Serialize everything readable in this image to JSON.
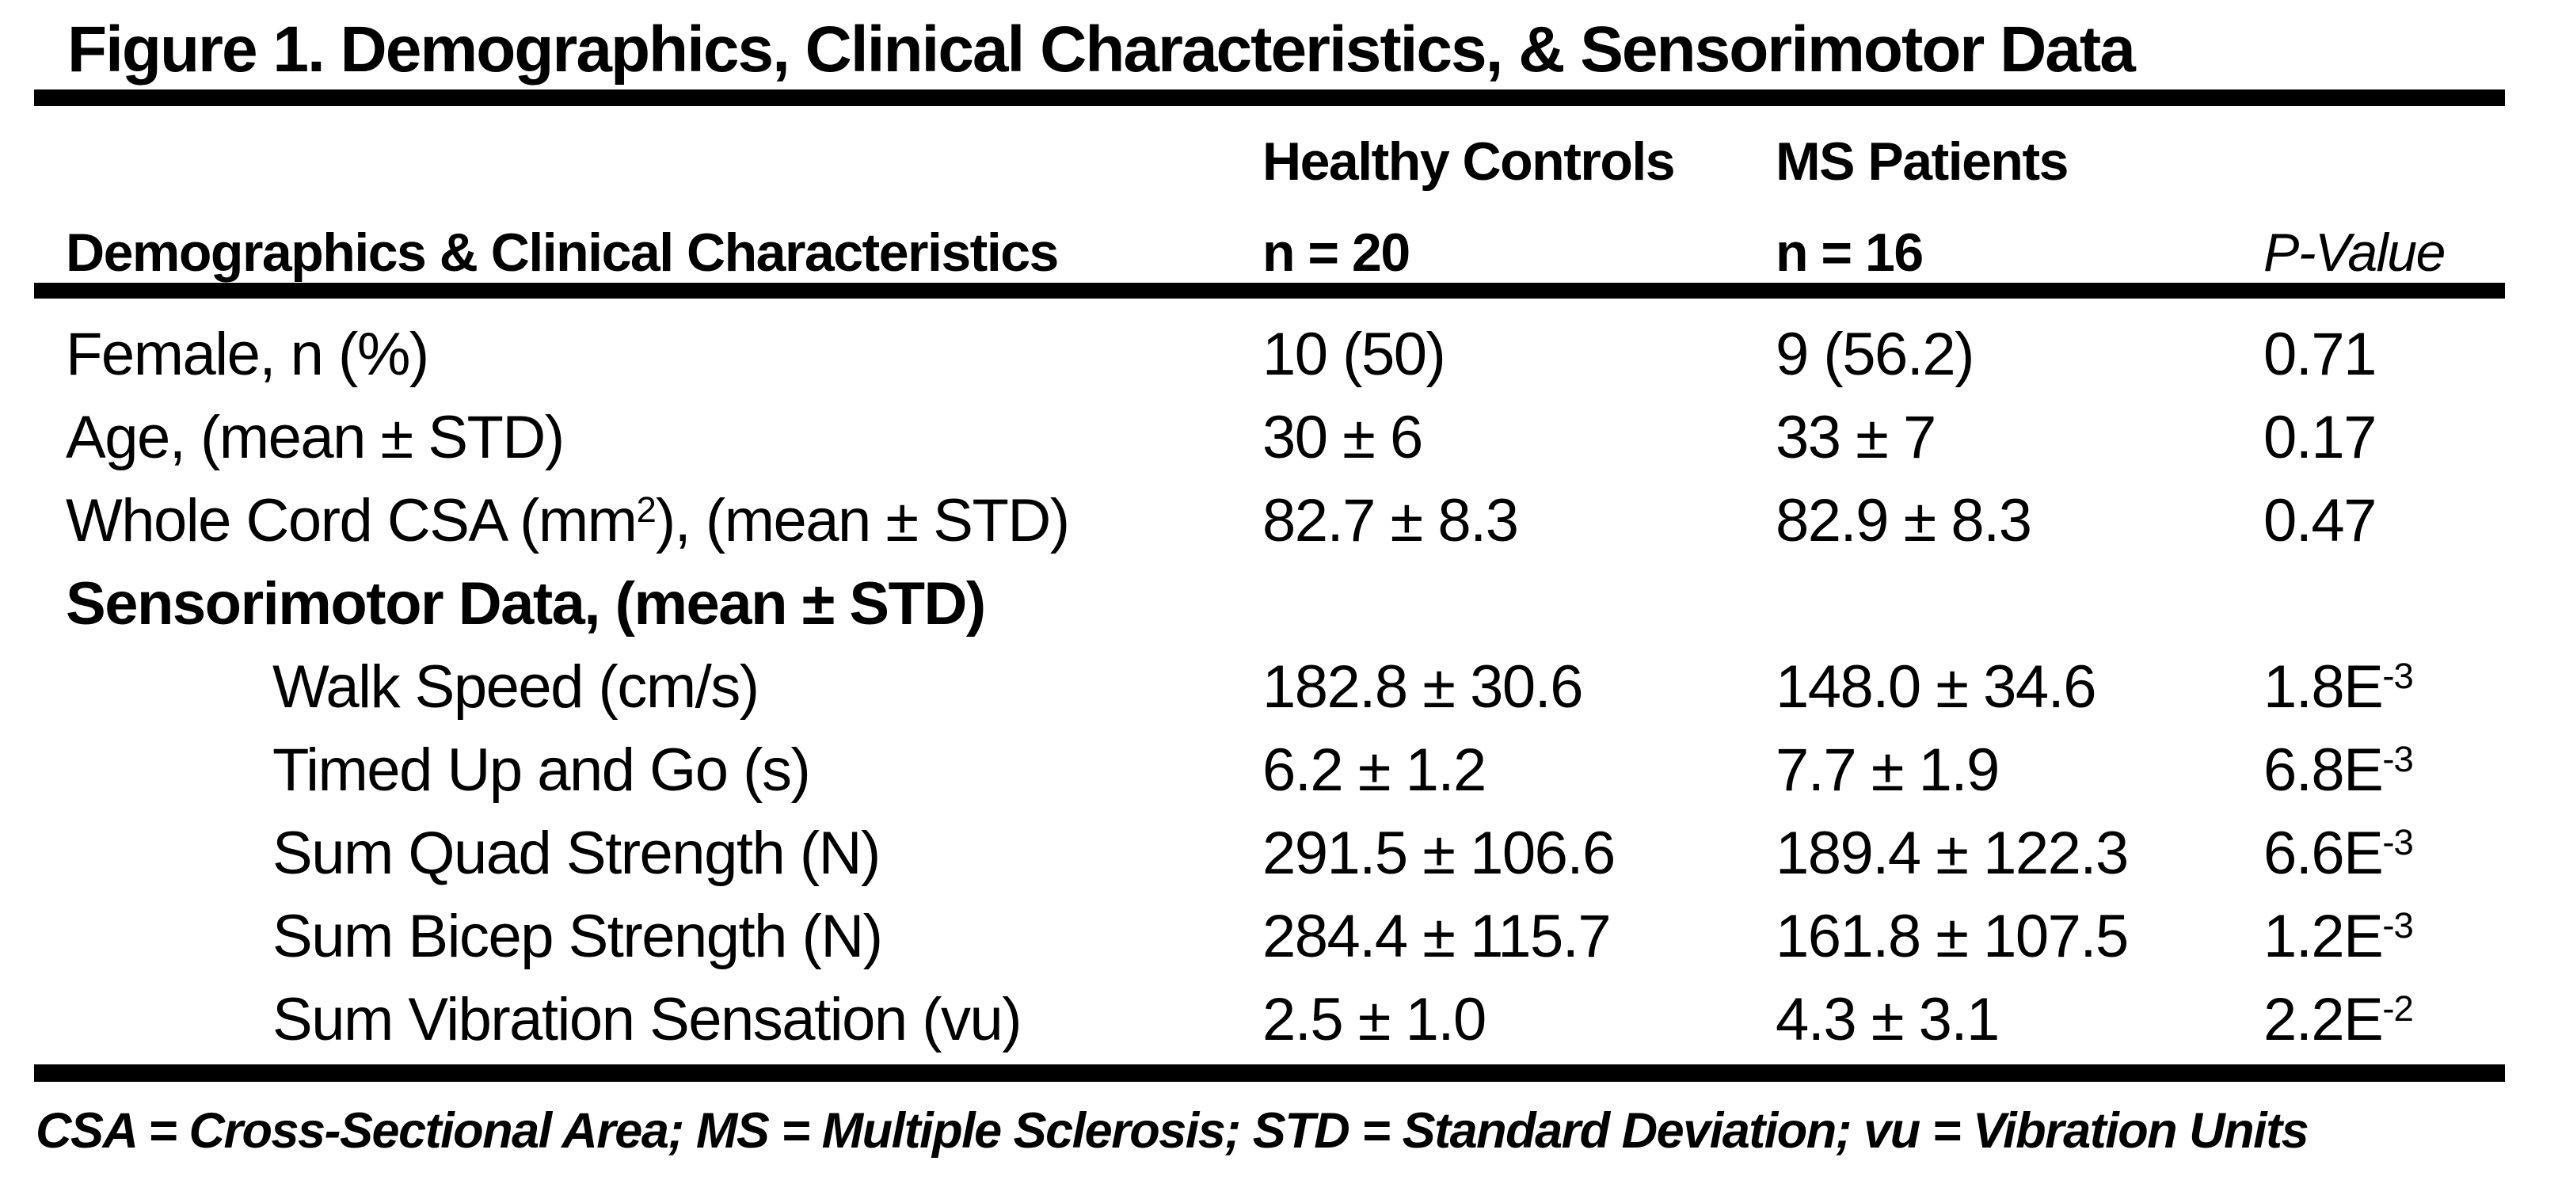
{
  "colors": {
    "background": "#ffffff",
    "text": "#000000",
    "rule": "#000000"
  },
  "title": "Figure 1. Demographics, Clinical Characteristics, & Sensorimotor Data",
  "header": {
    "col1_label": "Demographics & Clinical Characteristics",
    "healthy_controls": {
      "group": "Healthy Controls",
      "n": "n = 20"
    },
    "ms_patients": {
      "group": "MS Patients",
      "n": "n = 16"
    },
    "p_value_label": "P-Value"
  },
  "rows": [
    {
      "label": "Female, n (%)",
      "hc": "10 (50)",
      "ms": "9 (56.2)",
      "p": "0.71"
    },
    {
      "label": "Age, (mean ± STD)",
      "hc": "30 ± 6",
      "ms": "33 ± 7",
      "p": "0.17"
    },
    {
      "label_pre": "Whole Cord CSA (mm",
      "label_sup": "2",
      "label_post": "), (mean ± STD)",
      "hc": "82.7 ± 8.3",
      "ms": "82.9 ± 8.3",
      "p": "0.47"
    },
    {
      "label": "Sensorimotor Data, (mean ± STD)"
    },
    {
      "label": "Walk Speed (cm/s)",
      "hc": "182.8 ± 30.6",
      "ms": "148.0 ± 34.6",
      "p_base": "1.8E",
      "p_exp": "-3"
    },
    {
      "label": "Timed Up and Go (s)",
      "hc": "6.2 ± 1.2",
      "ms": "7.7 ± 1.9",
      "p_base": "6.8E",
      "p_exp": "-3"
    },
    {
      "label": "Sum Quad Strength (N)",
      "hc": "291.5 ± 106.6",
      "ms": "189.4 ± 122.3",
      "p_base": "6.6E",
      "p_exp": "-3"
    },
    {
      "label": "Sum Bicep Strength (N)",
      "hc": "284.4 ± 115.7",
      "ms": "161.8 ± 107.5",
      "p_base": "1.2E",
      "p_exp": "-3"
    },
    {
      "label": "Sum Vibration Sensation (vu)",
      "hc": "2.5 ± 1.0",
      "ms": "4.3 ± 3.1",
      "p_base": "2.2E",
      "p_exp": "-2"
    }
  ],
  "footnote": "CSA = Cross-Sectional Area; MS = Multiple Sclerosis; STD = Standard Deviation; vu = Vibration Units"
}
